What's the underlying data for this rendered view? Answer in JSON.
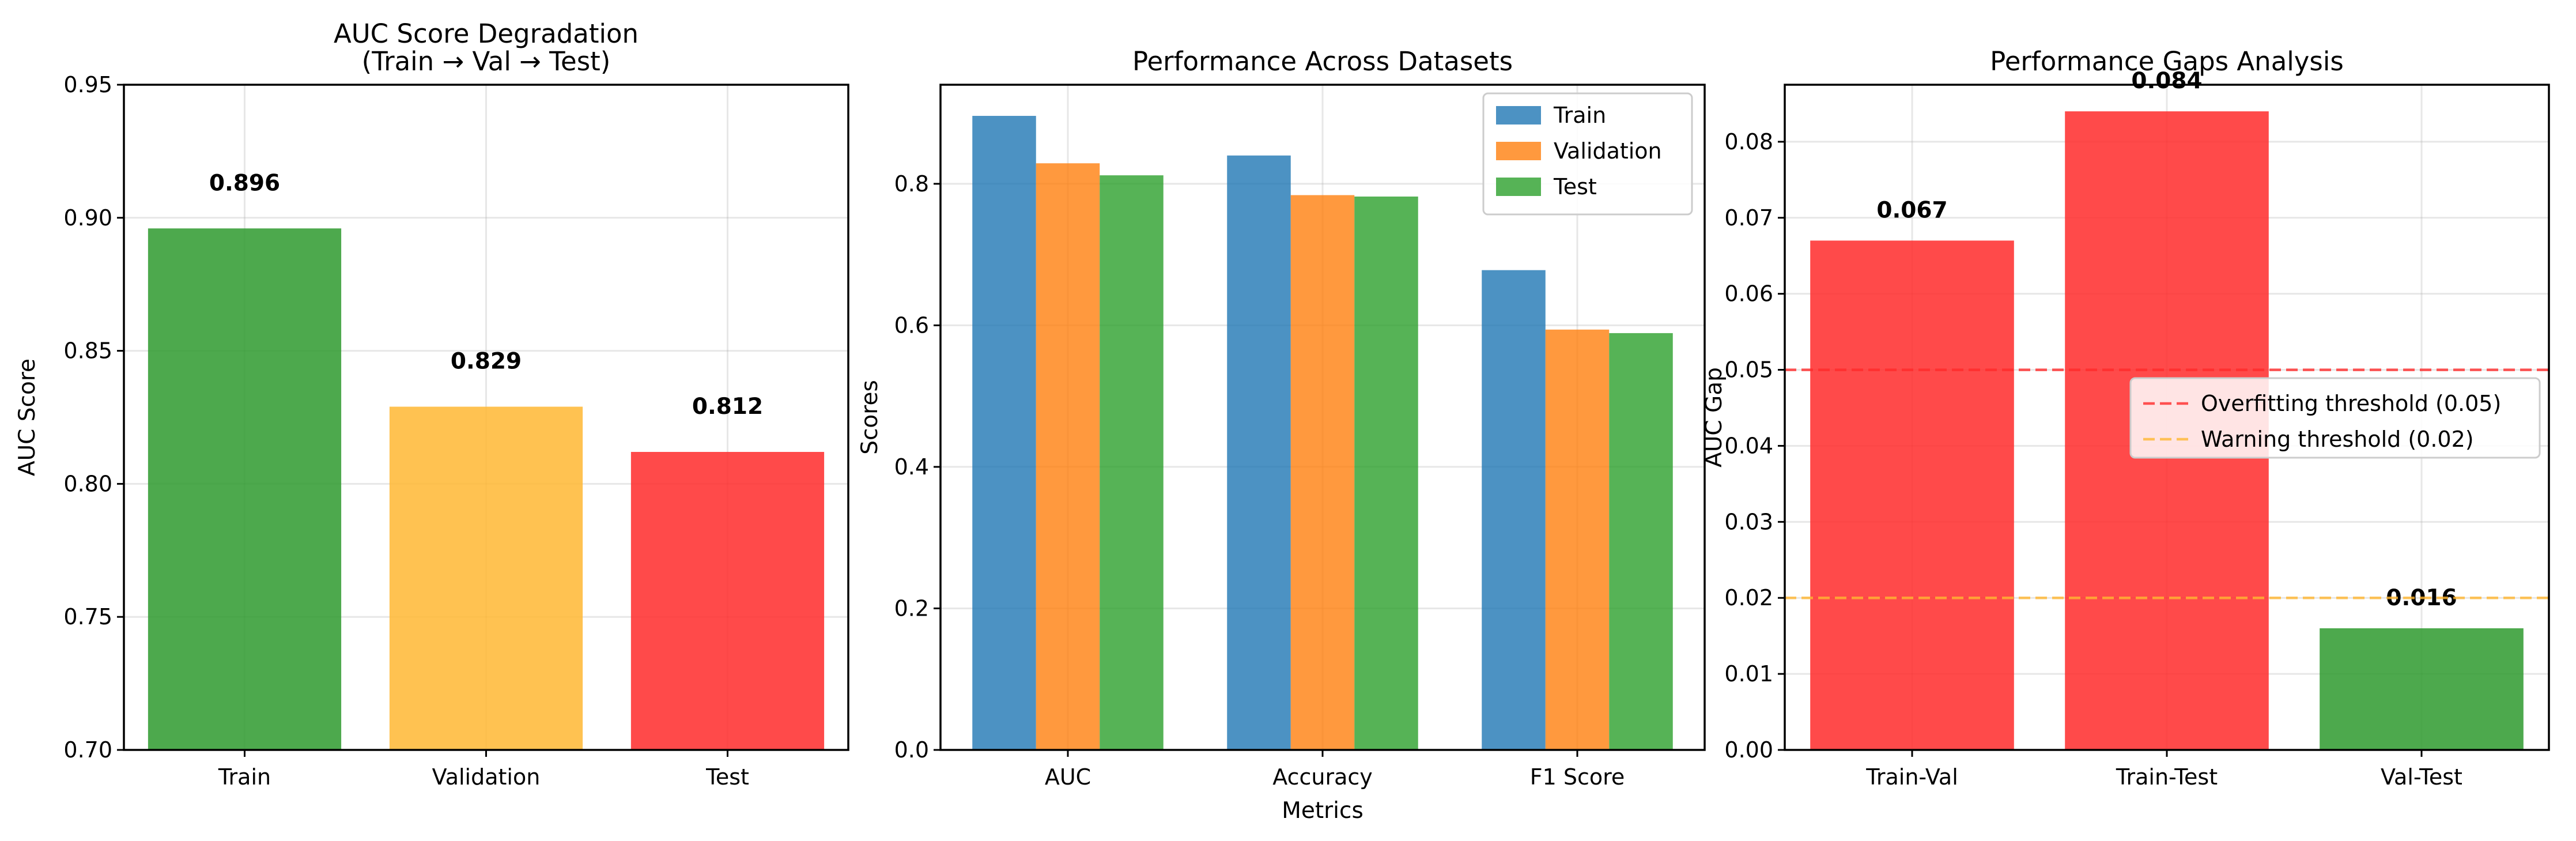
{
  "chart_data": [
    {
      "type": "bar",
      "title": "AUC Score Degradation\n(Train → Val → Test)",
      "xlabel": "",
      "ylabel": "AUC Score",
      "ylim": [
        0.7,
        0.95
      ],
      "yticks": [
        0.7,
        0.75,
        0.8,
        0.85,
        0.9,
        0.95
      ],
      "ytick_labels": [
        "0.70",
        "0.75",
        "0.80",
        "0.85",
        "0.90",
        "0.95"
      ],
      "grid": true,
      "categories": [
        "Train",
        "Validation",
        "Test"
      ],
      "values": [
        0.896,
        0.829,
        0.812
      ],
      "data_labels": [
        "0.896",
        "0.829",
        "0.812"
      ],
      "colors": [
        "#2e9a2e",
        "#ffb732",
        "#ff2a2a"
      ]
    },
    {
      "type": "bar",
      "title": "Performance Across Datasets",
      "xlabel": "Metrics",
      "ylabel": "Scores",
      "ylim": [
        0,
        0.94
      ],
      "yticks": [
        0.0,
        0.2,
        0.4,
        0.6,
        0.8
      ],
      "ytick_labels": [
        "0.0",
        "0.2",
        "0.4",
        "0.6",
        "0.8"
      ],
      "grid": true,
      "legend": "top-right",
      "categories": [
        "AUC",
        "Accuracy",
        "F1 Score"
      ],
      "series": [
        {
          "name": "Train",
          "values": [
            0.896,
            0.84,
            0.678
          ],
          "color": "#1f77b4"
        },
        {
          "name": "Validation",
          "values": [
            0.829,
            0.784,
            0.594
          ],
          "color": "#ff7f0e"
        },
        {
          "name": "Test",
          "values": [
            0.812,
            0.782,
            0.589
          ],
          "color": "#2ca02c"
        }
      ]
    },
    {
      "type": "bar",
      "title": "Performance Gaps Analysis",
      "xlabel": "",
      "ylabel": "AUC Gap",
      "ylim": [
        0,
        0.0875
      ],
      "yticks": [
        0.0,
        0.01,
        0.02,
        0.03,
        0.04,
        0.05,
        0.06,
        0.07,
        0.08
      ],
      "ytick_labels": [
        "0.00",
        "0.01",
        "0.02",
        "0.03",
        "0.04",
        "0.05",
        "0.06",
        "0.07",
        "0.08"
      ],
      "grid": true,
      "legend": "center-right",
      "categories": [
        "Train-Val",
        "Train-Test",
        "Val-Test"
      ],
      "values": [
        0.067,
        0.084,
        0.016
      ],
      "data_labels": [
        "0.067",
        "0.084",
        "0.016"
      ],
      "colors": [
        "#ff2a2a",
        "#ff2a2a",
        "#2e9a2e"
      ],
      "thresholds": [
        {
          "name": "Overfitting threshold (0.05)",
          "value": 0.05,
          "color": "#ff2a2a"
        },
        {
          "name": "Warning threshold (0.02)",
          "value": 0.02,
          "color": "#ffb732"
        }
      ]
    }
  ]
}
